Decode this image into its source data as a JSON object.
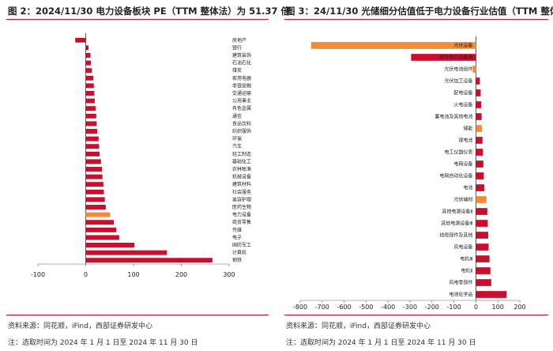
{
  "colors": {
    "bar": "#c8102e",
    "highlight": "#f28c38",
    "rule": "#c8102e"
  },
  "left": {
    "title": "图 2：2024/11/30 电力设备板块 PE（TTM 整体法）为 51.37 倍",
    "source": "资料来源：同花顺，iFind，西部证券研发中心",
    "date": "注：选取时间为 2024 年 1 月 1 日至 2024 年 11 月 30 日"
  },
  "right": {
    "title": "图 3：24/11/30 光储细分估值低于电力设备行业估值（TTM 整体法）",
    "source": "资料来源：同花顺，iFind，西部证券研发中心",
    "date": "注：选取时间为 2024 年 1 月 1 日至 2024 年 11 月 30 日"
  },
  "chart_data": [
    {
      "type": "bar",
      "orientation": "horizontal",
      "title": "图 2：2024/11/30 电力设备板块 PE（TTM 整体法）为 51.37 倍",
      "xlim": [
        -100,
        300
      ],
      "xticks": [
        -100,
        0,
        100,
        200,
        300
      ],
      "highlight": "电力设备",
      "categories": [
        "房地产",
        "银行",
        "建筑装饰",
        "石油石化",
        "煤炭",
        "家用电器",
        "非银金融",
        "交通运输",
        "公用事业",
        "有色金属",
        "通信",
        "食品饮料",
        "纺织服饰",
        "环保",
        "汽车",
        "轻工制造",
        "基础化工",
        "农林牧渔",
        "机械设备",
        "建筑材料",
        "社会服务",
        "美容护理",
        "医药生物",
        "电力设备",
        "商贸零售",
        "传媒",
        "电子",
        "国防军工",
        "计算机",
        "钢铁"
      ],
      "values": [
        -22,
        6,
        10,
        11,
        13,
        16,
        17,
        18,
        19,
        21,
        22,
        23,
        24,
        27,
        28,
        29,
        32,
        34,
        35,
        37,
        38,
        40,
        42,
        51.37,
        59,
        64,
        70,
        102,
        170,
        265
      ]
    },
    {
      "type": "bar",
      "orientation": "horizontal",
      "title": "图 3：24/11/30 光储细分估值低于电力设备行业估值（TTM 整体法）",
      "xlim": [
        -800,
        200
      ],
      "xticks": [
        -800,
        -700,
        -600,
        -500,
        -400,
        -300,
        -200,
        -100,
        0,
        100,
        200
      ],
      "highlight": [
        "光伏设备",
        "光伏电池组件",
        "储能",
        "光伏辅材"
      ],
      "categories": [
        "光伏设备",
        "综合电力设备商",
        "光伏电池组件",
        "光伏加工设备",
        "配电设备",
        "火电设备",
        "蓄电池及其他电池",
        "储能",
        "锂电池",
        "电工仪器仪表",
        "电网设备",
        "电网自动化设备",
        "电池",
        "光伏辅材",
        "其他电源设备Ⅱ",
        "其他电源设备Ⅲ",
        "线缆部件及其他",
        "风电设备",
        "电机Ⅲ",
        "电机Ⅱ",
        "风电零部件",
        "电池化学品"
      ],
      "values": [
        -750,
        -295,
        -15,
        18,
        22,
        24,
        26,
        28,
        30,
        32,
        34,
        36,
        38,
        48,
        52,
        54,
        56,
        58,
        62,
        66,
        70,
        140
      ]
    }
  ]
}
